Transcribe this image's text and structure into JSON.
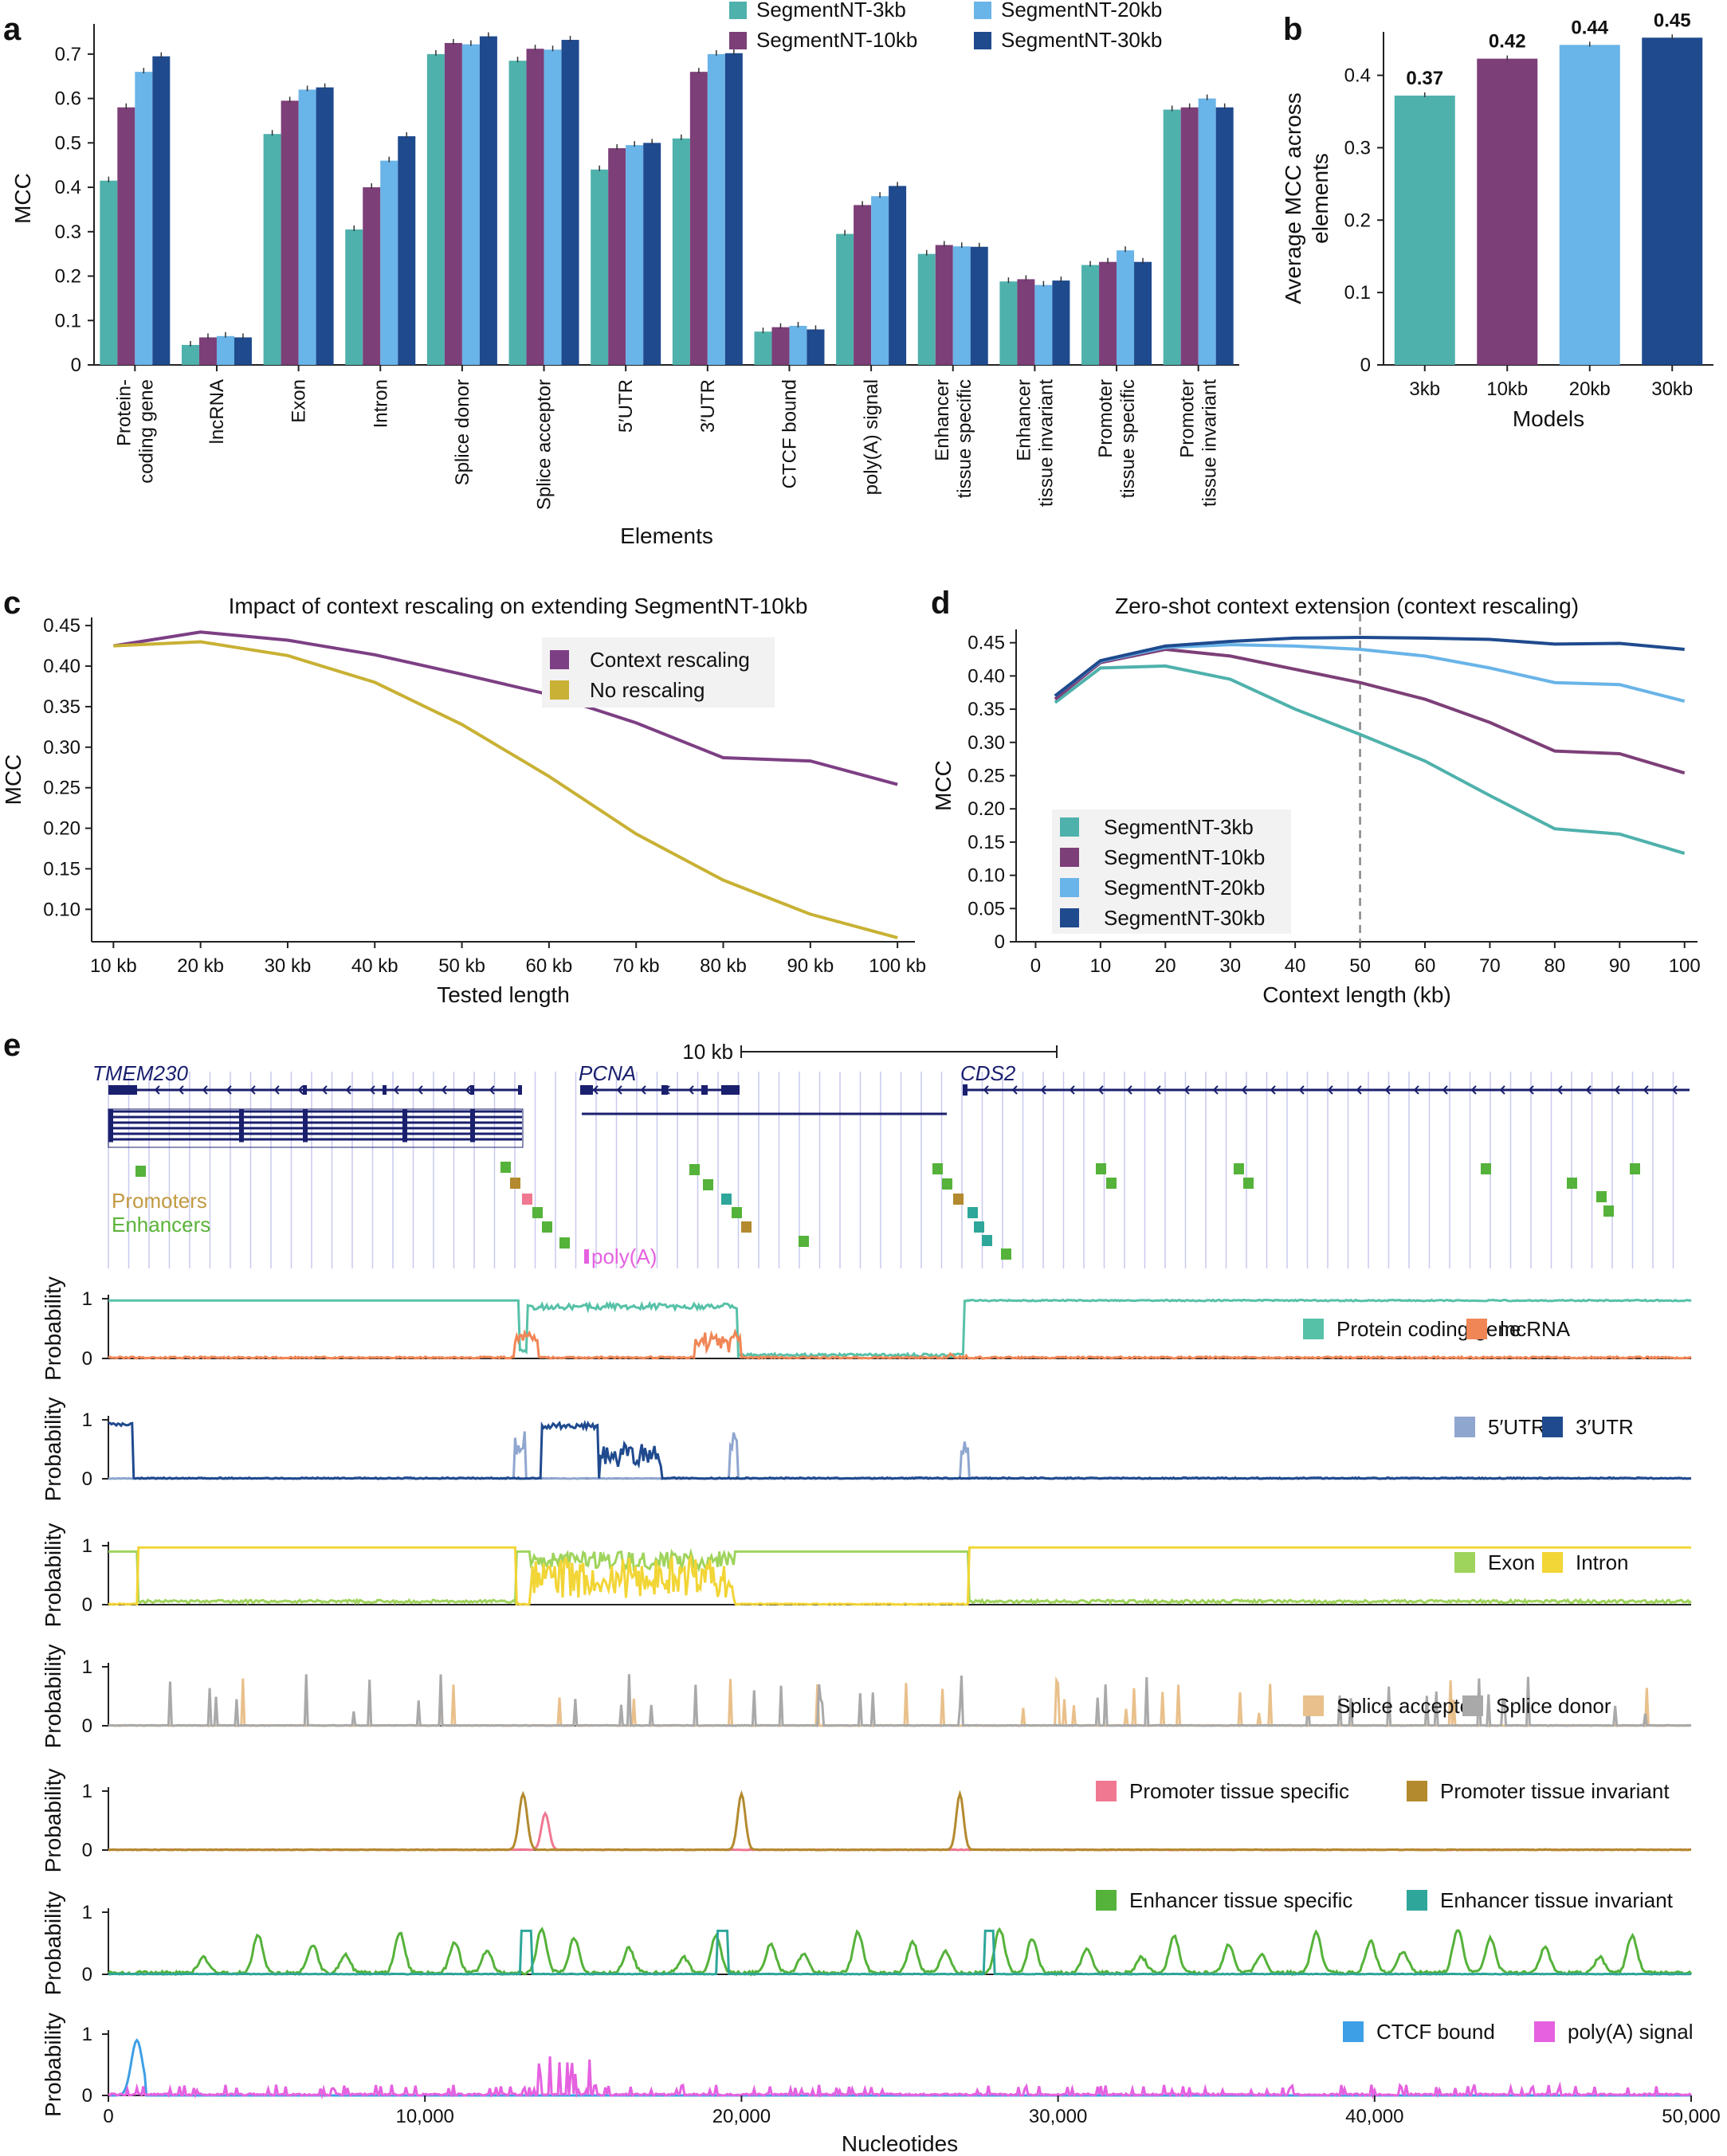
{
  "panels": [
    "a",
    "b",
    "c",
    "d",
    "e"
  ],
  "colors": {
    "3kb": "#4fb1ac",
    "10kb": "#7d3f78",
    "20kb": "#69b4e8",
    "30kb": "#1f4a8e",
    "rescale": "#7d3f84",
    "norescale": "#c8b134",
    "gene": "#1a1f6e",
    "promoter_track": "#c19a42",
    "enhancer_track": "#5cb338",
    "pcg": "#57c1a8",
    "lnc": "#f08656",
    "utr5": "#8fa6cf",
    "utr3": "#1f4a8e",
    "exon": "#9fd45c",
    "intron": "#f2d536",
    "acceptor": "#e9c08b",
    "donor": "#a9a9a9",
    "prom_ts": "#f07891",
    "prom_ti": "#b38a2e",
    "enh_ts": "#55b23a",
    "enh_ti": "#2ea69a",
    "ctcf": "#3d9fe6",
    "polya": "#e561e0"
  },
  "chart_data": [
    {
      "id": "a",
      "type": "bar",
      "ylabel": "MCC",
      "xlabel": "Elements",
      "ylim": [
        0,
        0.75
      ],
      "yticks": [
        "0",
        "0.1",
        "0.2",
        "0.3",
        "0.4",
        "0.5",
        "0.6",
        "0.7"
      ],
      "categories": [
        "Protein-\ncoding gene",
        "lncRNA",
        "Exon",
        "Intron",
        "Splice donor",
        "Splice acceptor",
        "5′UTR",
        "3′UTR",
        "CTCF bound",
        "poly(A) signal",
        "Enhancer\ntissue specific",
        "Enhancer\ntissue invariant",
        "Promoter\ntissue specific",
        "Promoter\ntissue invariant"
      ],
      "legend": [
        "SegmentNT-3kb",
        "SegmentNT-20kb",
        "SegmentNT-10kb",
        "SegmentNT-30kb"
      ],
      "series": [
        {
          "name": "SegmentNT-3kb",
          "values": [
            0.415,
            0.045,
            0.52,
            0.305,
            0.7,
            0.685,
            0.44,
            0.51,
            0.075,
            0.295,
            0.25,
            0.188,
            0.225,
            0.575
          ]
        },
        {
          "name": "SegmentNT-10kb",
          "values": [
            0.58,
            0.062,
            0.595,
            0.4,
            0.725,
            0.712,
            0.488,
            0.66,
            0.085,
            0.36,
            0.27,
            0.193,
            0.232,
            0.58
          ]
        },
        {
          "name": "SegmentNT-20kb",
          "values": [
            0.66,
            0.065,
            0.62,
            0.46,
            0.722,
            0.71,
            0.495,
            0.7,
            0.088,
            0.38,
            0.267,
            0.18,
            0.258,
            0.6
          ]
        },
        {
          "name": "SegmentNT-30kb",
          "values": [
            0.695,
            0.062,
            0.625,
            0.515,
            0.74,
            0.732,
            0.5,
            0.702,
            0.08,
            0.403,
            0.266,
            0.19,
            0.232,
            0.58
          ]
        }
      ]
    },
    {
      "id": "b",
      "type": "bar",
      "ylabel": "Average MCC across\nelements",
      "xlabel": "Models",
      "ylim": [
        0,
        0.46
      ],
      "yticks": [
        "0",
        "0.1",
        "0.2",
        "0.3",
        "0.4"
      ],
      "categories": [
        "3kb",
        "10kb",
        "20kb",
        "30kb"
      ],
      "values": [
        0.372,
        0.423,
        0.442,
        0.452
      ],
      "data_labels": [
        "0.37",
        "0.42",
        "0.44",
        "0.45"
      ]
    },
    {
      "id": "c",
      "type": "line",
      "title": "Impact of context rescaling on extending SegmentNT-10kb",
      "xlabel": "Tested length",
      "ylabel": "MCC",
      "ylim": [
        0.06,
        0.46
      ],
      "x": [
        10,
        20,
        30,
        40,
        50,
        60,
        70,
        80,
        90,
        100
      ],
      "xticks": [
        "10 kb",
        "20 kb",
        "30 kb",
        "40 kb",
        "50 kb",
        "60 kb",
        "70 kb",
        "80 kb",
        "90 kb",
        "100 kb"
      ],
      "yticks": [
        "0.10",
        "0.15",
        "0.20",
        "0.25",
        "0.30",
        "0.35",
        "0.40",
        "0.45"
      ],
      "series": [
        {
          "name": "Context rescaling",
          "values": [
            0.425,
            0.442,
            0.432,
            0.414,
            0.39,
            0.365,
            0.33,
            0.287,
            0.283,
            0.254
          ]
        },
        {
          "name": "No rescaling",
          "values": [
            0.425,
            0.43,
            0.413,
            0.38,
            0.328,
            0.264,
            0.193,
            0.136,
            0.094,
            0.065
          ]
        }
      ]
    },
    {
      "id": "d",
      "type": "line",
      "title": "Zero-shot context extension (context rescaling)",
      "xlabel": "Context length (kb)",
      "ylabel": "MCC",
      "ylim": [
        0,
        0.47
      ],
      "xlim": [
        0,
        102
      ],
      "vline_x": 50,
      "xticks": [
        "0",
        "10",
        "20",
        "30",
        "40",
        "50",
        "60",
        "70",
        "80",
        "90",
        "100"
      ],
      "yticks": [
        "0",
        "0.05",
        "0.10",
        "0.15",
        "0.20",
        "0.25",
        "0.30",
        "0.35",
        "0.40",
        "0.45"
      ],
      "x": [
        3,
        10,
        20,
        30,
        40,
        50,
        60,
        70,
        80,
        90,
        100
      ],
      "series": [
        {
          "name": "SegmentNT-3kb",
          "values": [
            0.36,
            0.412,
            0.415,
            0.395,
            0.35,
            0.312,
            0.272,
            0.22,
            0.17,
            0.162,
            0.133
          ]
        },
        {
          "name": "SegmentNT-10kb",
          "values": [
            0.365,
            0.42,
            0.44,
            0.43,
            0.41,
            0.39,
            0.365,
            0.33,
            0.287,
            0.283,
            0.254
          ]
        },
        {
          "name": "SegmentNT-20kb",
          "values": [
            0.37,
            0.422,
            0.443,
            0.447,
            0.445,
            0.44,
            0.43,
            0.412,
            0.39,
            0.387,
            0.362
          ]
        },
        {
          "name": "SegmentNT-30kb",
          "values": [
            0.37,
            0.423,
            0.445,
            0.452,
            0.457,
            0.458,
            0.457,
            0.455,
            0.448,
            0.449,
            0.44
          ]
        }
      ]
    },
    {
      "id": "e",
      "type": "line",
      "xlabel": "Nucleotides",
      "ylabel": "Probability",
      "xlim": [
        0,
        50000
      ],
      "xticks": [
        "0",
        "10,000",
        "20,000",
        "30,000",
        "40,000",
        "50,000"
      ],
      "yticks": [
        "0",
        "1"
      ],
      "scale_bar": "10 kb",
      "genes": [
        "TMEM230",
        "PCNA",
        "CDS2"
      ],
      "annotation_labels": [
        "Promoters",
        "Enhancers",
        "poly(A)"
      ],
      "tracks": [
        {
          "name": "track1",
          "series": [
            {
              "name": "Protein coding gene"
            },
            {
              "name": "lncRNA"
            }
          ]
        },
        {
          "name": "track2",
          "series": [
            {
              "name": "5′UTR"
            },
            {
              "name": "3′UTR"
            }
          ]
        },
        {
          "name": "track3",
          "series": [
            {
              "name": "Exon"
            },
            {
              "name": "Intron"
            }
          ]
        },
        {
          "name": "track4",
          "series": [
            {
              "name": "Splice acceptor"
            },
            {
              "name": "Splice donor"
            }
          ]
        },
        {
          "name": "track5",
          "series": [
            {
              "name": "Promoter tissue specific"
            },
            {
              "name": "Promoter tissue invariant"
            }
          ]
        },
        {
          "name": "track6",
          "series": [
            {
              "name": "Enhancer tissue specific"
            },
            {
              "name": "Enhancer tissue invariant"
            }
          ]
        },
        {
          "name": "track7",
          "series": [
            {
              "name": "CTCF bound"
            },
            {
              "name": "poly(A) signal"
            }
          ]
        }
      ]
    }
  ]
}
